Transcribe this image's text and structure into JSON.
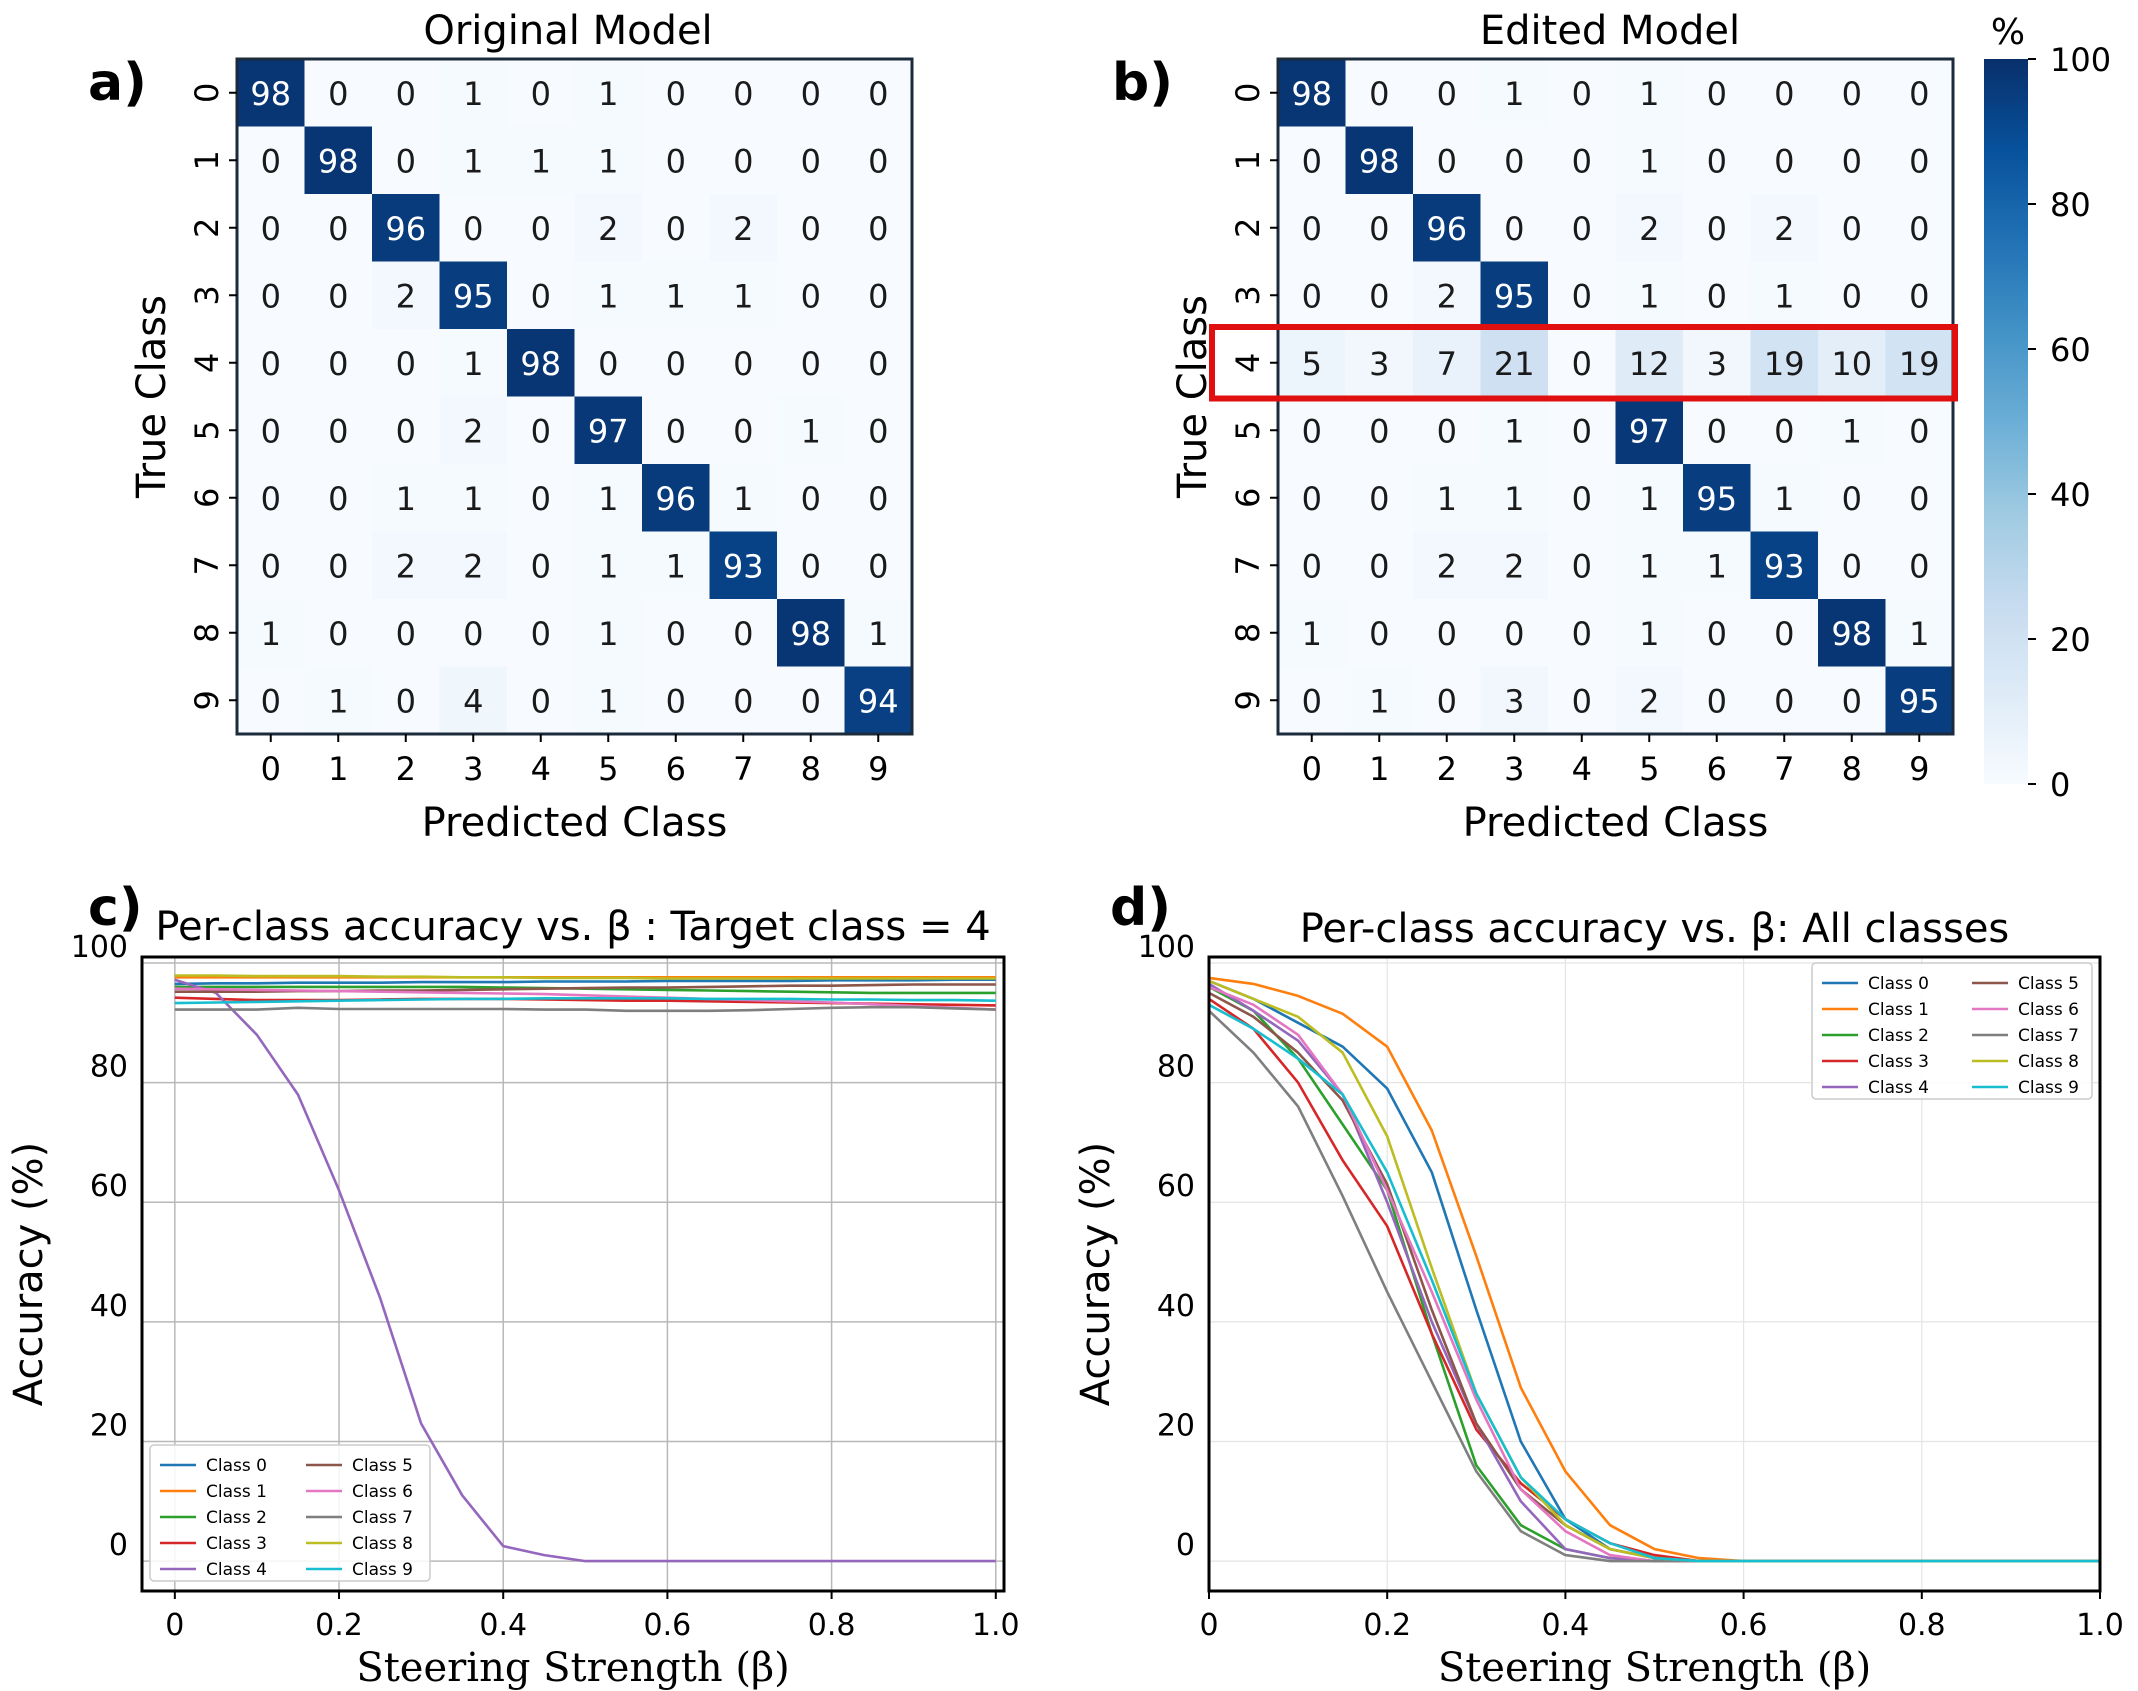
{
  "figure": {
    "panels": {
      "a": {
        "label": "a)",
        "title": "Original Model"
      },
      "b": {
        "label": "b)",
        "title": "Edited Model"
      },
      "c": {
        "label": "c)"
      },
      "d": {
        "label": "d)"
      }
    }
  },
  "chart_data": [
    {
      "id": "a",
      "type": "heatmap",
      "title": "Original Model",
      "xlabel": "Predicted Class",
      "ylabel": "True Class",
      "x_ticks": [
        "0",
        "1",
        "2",
        "3",
        "4",
        "5",
        "6",
        "7",
        "8",
        "9"
      ],
      "y_ticks": [
        "0",
        "1",
        "2",
        "3",
        "4",
        "5",
        "6",
        "7",
        "8",
        "9"
      ],
      "values": [
        [
          98,
          0,
          0,
          1,
          0,
          1,
          0,
          0,
          0,
          0
        ],
        [
          0,
          98,
          0,
          1,
          1,
          1,
          0,
          0,
          0,
          0
        ],
        [
          0,
          0,
          96,
          0,
          0,
          2,
          0,
          2,
          0,
          0
        ],
        [
          0,
          0,
          2,
          95,
          0,
          1,
          1,
          1,
          0,
          0
        ],
        [
          0,
          0,
          0,
          1,
          98,
          0,
          0,
          0,
          0,
          0
        ],
        [
          0,
          0,
          0,
          2,
          0,
          97,
          0,
          0,
          1,
          0
        ],
        [
          0,
          0,
          1,
          1,
          0,
          1,
          96,
          1,
          0,
          0
        ],
        [
          0,
          0,
          2,
          2,
          0,
          1,
          1,
          93,
          0,
          0
        ],
        [
          1,
          0,
          0,
          0,
          0,
          1,
          0,
          0,
          98,
          1
        ],
        [
          0,
          1,
          0,
          4,
          0,
          1,
          0,
          0,
          0,
          94
        ]
      ]
    },
    {
      "id": "b",
      "type": "heatmap",
      "title": "Edited Model",
      "xlabel": "Predicted Class",
      "ylabel": "True Class",
      "x_ticks": [
        "0",
        "1",
        "2",
        "3",
        "4",
        "5",
        "6",
        "7",
        "8",
        "9"
      ],
      "y_ticks": [
        "0",
        "1",
        "2",
        "3",
        "4",
        "5",
        "6",
        "7",
        "8",
        "9"
      ],
      "highlight_row": 4,
      "colorbar": {
        "label": "%",
        "ticks": [
          "0",
          "20",
          "40",
          "60",
          "80",
          "100"
        ],
        "range": [
          0,
          100
        ],
        "colors": [
          "#f7fbff",
          "#08306b"
        ]
      },
      "values": [
        [
          98,
          0,
          0,
          1,
          0,
          1,
          0,
          0,
          0,
          0
        ],
        [
          0,
          98,
          0,
          0,
          0,
          1,
          0,
          0,
          0,
          0
        ],
        [
          0,
          0,
          96,
          0,
          0,
          2,
          0,
          2,
          0,
          0
        ],
        [
          0,
          0,
          2,
          95,
          0,
          1,
          0,
          1,
          0,
          0
        ],
        [
          5,
          3,
          7,
          21,
          0,
          12,
          3,
          19,
          10,
          19
        ],
        [
          0,
          0,
          0,
          1,
          0,
          97,
          0,
          0,
          1,
          0
        ],
        [
          0,
          0,
          1,
          1,
          0,
          1,
          95,
          1,
          0,
          0
        ],
        [
          0,
          0,
          2,
          2,
          0,
          1,
          1,
          93,
          0,
          0
        ],
        [
          1,
          0,
          0,
          0,
          0,
          1,
          0,
          0,
          98,
          1
        ],
        [
          0,
          1,
          0,
          3,
          0,
          2,
          0,
          0,
          0,
          95
        ]
      ]
    },
    {
      "id": "c",
      "type": "line",
      "title": "Per-class accuracy vs. β : Target class = 4",
      "xlabel": "Steering Strength (β)",
      "ylabel": "Accuracy (%)",
      "xlim": [
        -0.04,
        1.01
      ],
      "ylim": [
        -5,
        101
      ],
      "x_ticks": [
        "0",
        "0.2",
        "0.4",
        "0.6",
        "0.8",
        "1.0"
      ],
      "y_ticks": [
        "0",
        "20",
        "40",
        "60",
        "80",
        "100"
      ],
      "grid": true,
      "legend": "lower-left",
      "x": [
        0,
        0.05,
        0.1,
        0.15,
        0.2,
        0.25,
        0.3,
        0.35,
        0.4,
        0.45,
        0.5,
        0.55,
        0.6,
        0.65,
        0.7,
        0.75,
        0.8,
        0.85,
        0.9,
        0.95,
        1.0
      ],
      "series": [
        {
          "name": "Class 0",
          "color": "#1f77b4",
          "values": [
            96.5,
            96.6,
            96.6,
            96.7,
            96.7,
            96.7,
            96.8,
            96.8,
            96.8,
            96.9,
            96.9,
            96.9,
            97,
            97,
            97,
            97,
            97.1,
            97.1,
            97.1,
            97.2,
            97.2
          ]
        },
        {
          "name": "Class 1",
          "color": "#ff7f0e",
          "values": [
            97.6,
            97.6,
            97.6,
            97.6,
            97.6,
            97.6,
            97.6,
            97.6,
            97.6,
            97.6,
            97.6,
            97.6,
            97.6,
            97.6,
            97.6,
            97.6,
            97.6,
            97.6,
            97.6,
            97.6,
            97.6
          ]
        },
        {
          "name": "Class 2",
          "color": "#2ca02c",
          "values": [
            96,
            96,
            96,
            96,
            96,
            96,
            96,
            96,
            95.9,
            95.8,
            95.7,
            95.6,
            95.5,
            95.4,
            95.3,
            95.2,
            95.1,
            95,
            95,
            95,
            95
          ]
        },
        {
          "name": "Class 3",
          "color": "#d62728",
          "values": [
            94.2,
            94,
            93.8,
            93.8,
            93.8,
            93.9,
            94,
            94,
            94,
            93.9,
            93.8,
            93.7,
            93.7,
            93.6,
            93.5,
            93.4,
            93.3,
            93.2,
            93.1,
            93,
            92.9
          ]
        },
        {
          "name": "Class 4",
          "color": "#9467bd",
          "values": [
            97.2,
            95,
            88,
            78,
            62,
            44,
            23,
            11,
            2.5,
            1,
            0,
            0,
            0,
            0,
            0,
            0,
            0,
            0,
            0,
            0,
            0
          ]
        },
        {
          "name": "Class 5",
          "color": "#8c564b",
          "values": [
            95.2,
            95.2,
            95.2,
            95.3,
            95.3,
            95.4,
            95.4,
            95.5,
            95.6,
            95.7,
            95.8,
            95.9,
            95.9,
            96,
            96.1,
            96.2,
            96.2,
            96.3,
            96.4,
            96.4,
            96.4
          ]
        },
        {
          "name": "Class 6",
          "color": "#e377c2",
          "values": [
            95.7,
            95.6,
            95.5,
            95.4,
            95.3,
            95.2,
            95.1,
            95,
            94.9,
            94.8,
            94.6,
            94.4,
            94.2,
            94,
            93.8,
            93.6,
            93.4,
            93.1,
            92.8,
            92.5,
            92.2
          ]
        },
        {
          "name": "Class 7",
          "color": "#7f7f7f",
          "values": [
            92.2,
            92.2,
            92.2,
            92.5,
            92.3,
            92.3,
            92.3,
            92.3,
            92.3,
            92.2,
            92.2,
            92,
            92,
            92,
            92.1,
            92.3,
            92.5,
            92.6,
            92.6,
            92.4,
            92.2
          ]
        },
        {
          "name": "Class 8",
          "color": "#bcbd22",
          "values": [
            97.9,
            97.9,
            97.8,
            97.8,
            97.8,
            97.7,
            97.7,
            97.6,
            97.6,
            97.5,
            97.5,
            97.5,
            97.4,
            97.4,
            97.4,
            97.4,
            97.4,
            97.4,
            97.4,
            97.4,
            97.4
          ]
        },
        {
          "name": "Class 9",
          "color": "#17becf",
          "values": [
            93.3,
            93.4,
            93.5,
            93.6,
            93.7,
            93.8,
            93.9,
            94,
            94,
            94.1,
            94.1,
            94.1,
            94.1,
            94,
            94,
            94,
            93.9,
            93.9,
            93.8,
            93.8,
            93.7
          ]
        }
      ]
    },
    {
      "id": "d",
      "type": "line",
      "title": "Per-class accuracy vs. β: All classes",
      "xlabel": "Steering Strength (β)",
      "ylabel": "Accuracy (%)",
      "xlim": [
        0,
        1.0
      ],
      "ylim": [
        -5,
        101
      ],
      "x_ticks": [
        "0",
        "0.2",
        "0.4",
        "0.6",
        "0.8",
        "1.0"
      ],
      "y_ticks": [
        "0",
        "20",
        "40",
        "60",
        "80",
        "100"
      ],
      "grid": true,
      "legend": "upper-right",
      "x": [
        0,
        0.05,
        0.1,
        0.15,
        0.2,
        0.25,
        0.3,
        0.35,
        0.4,
        0.45,
        0.5,
        0.55,
        0.6,
        0.65,
        0.7,
        0.75,
        0.8,
        0.85,
        0.9,
        0.95,
        1.0
      ],
      "series": [
        {
          "name": "Class 0",
          "color": "#1f77b4",
          "values": [
            97,
            94,
            90,
            86,
            79,
            65,
            42,
            20,
            7,
            2,
            0.5,
            0,
            0,
            0,
            0,
            0,
            0,
            0,
            0,
            0,
            0
          ]
        },
        {
          "name": "Class 1",
          "color": "#ff7f0e",
          "values": [
            97.5,
            96.5,
            94.5,
            91.5,
            86,
            72,
            51,
            29,
            15,
            6,
            2,
            0.5,
            0,
            0,
            0,
            0,
            0,
            0,
            0,
            0,
            0
          ]
        },
        {
          "name": "Class 2",
          "color": "#2ca02c",
          "values": [
            96,
            92,
            84,
            73,
            62,
            38,
            16,
            6,
            2,
            0.5,
            0,
            0,
            0,
            0,
            0,
            0,
            0,
            0,
            0,
            0,
            0
          ]
        },
        {
          "name": "Class 3",
          "color": "#d62728",
          "values": [
            94,
            89,
            80,
            67,
            56,
            38,
            22,
            13,
            7,
            3,
            1,
            0,
            0,
            0,
            0,
            0,
            0,
            0,
            0,
            0,
            0
          ]
        },
        {
          "name": "Class 4",
          "color": "#9467bd",
          "values": [
            96.5,
            92,
            87,
            78,
            60,
            40,
            23,
            10,
            2,
            0.5,
            0,
            0,
            0,
            0,
            0,
            0,
            0,
            0,
            0,
            0,
            0
          ]
        },
        {
          "name": "Class 5",
          "color": "#8c564b",
          "values": [
            95,
            91,
            85,
            77,
            63,
            42,
            23,
            12,
            6,
            2,
            0.5,
            0,
            0,
            0,
            0,
            0,
            0,
            0,
            0,
            0,
            0
          ]
        },
        {
          "name": "Class 6",
          "color": "#e377c2",
          "values": [
            96,
            93,
            88,
            78,
            62,
            45,
            27,
            12,
            5,
            1,
            0,
            0,
            0,
            0,
            0,
            0,
            0,
            0,
            0,
            0,
            0
          ]
        },
        {
          "name": "Class 7",
          "color": "#7f7f7f",
          "values": [
            92,
            85,
            76,
            61,
            45,
            30,
            15,
            5,
            1,
            0,
            0,
            0,
            0,
            0,
            0,
            0,
            0,
            0,
            0,
            0,
            0
          ]
        },
        {
          "name": "Class 8",
          "color": "#bcbd22",
          "values": [
            97,
            94,
            91,
            85,
            71,
            49,
            28,
            14,
            6,
            2,
            0.5,
            0,
            0,
            0,
            0,
            0,
            0,
            0,
            0,
            0,
            0
          ]
        },
        {
          "name": "Class 9",
          "color": "#17becf",
          "values": [
            93,
            89,
            84,
            78,
            65,
            47,
            28,
            14,
            7,
            3,
            0.5,
            0,
            0,
            0,
            0,
            0,
            0,
            0,
            0,
            0,
            0
          ]
        }
      ]
    }
  ]
}
